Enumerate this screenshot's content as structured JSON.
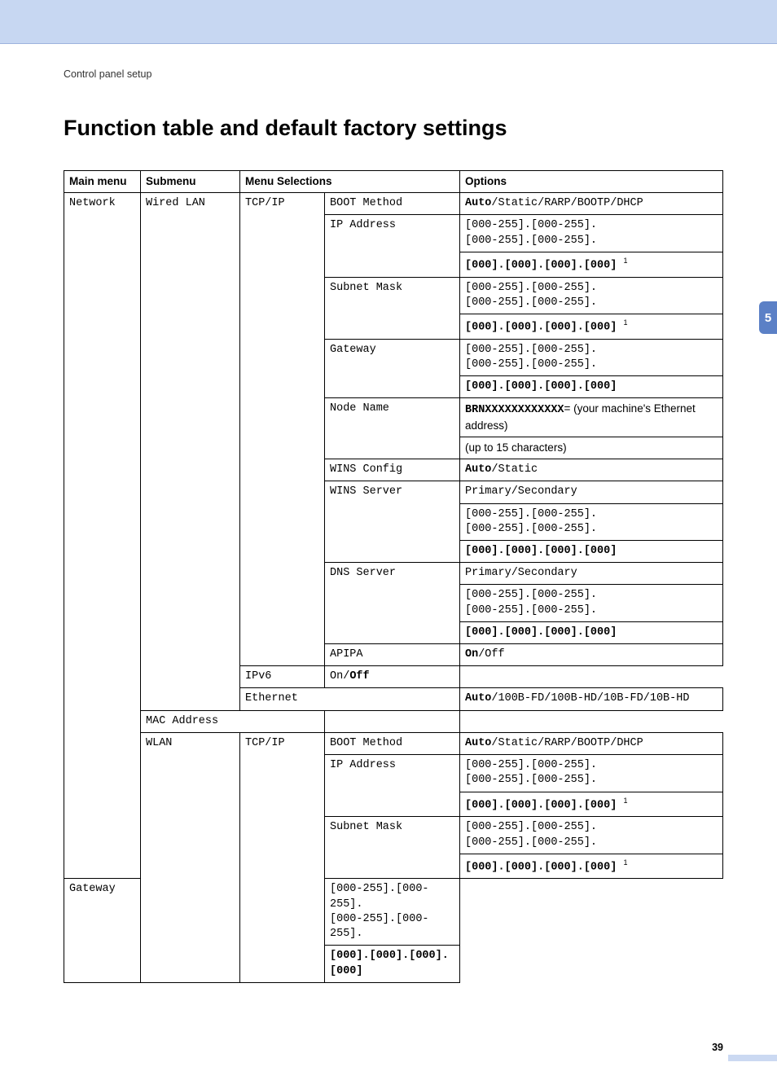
{
  "colors": {
    "header_band": "#c7d7f2",
    "side_tab": "#5b80c6",
    "border": "#000000",
    "text": "#000000"
  },
  "breadcrumb": "Control panel setup",
  "heading": "Function table and default factory settings",
  "side_tab_number": "5",
  "page_number": "39",
  "table": {
    "headers": {
      "main_menu": "Main menu",
      "submenu": "Submenu",
      "menu_selections": "Menu Selections",
      "options": "Options"
    },
    "main_menu": "Network",
    "submenus": {
      "wired": "Wired LAN",
      "wlan": "WLAN"
    },
    "selections": {
      "tcpip": "TCP/IP",
      "ethernet": "Ethernet",
      "mac": "MAC Address"
    },
    "items": {
      "boot_method": "BOOT Method",
      "ip_address": "IP Address",
      "subnet_mask": "Subnet Mask",
      "gateway": "Gateway",
      "node_name": "Node Name",
      "wins_config": "WINS Config",
      "wins_server": "WINS Server",
      "dns_server": "DNS Server",
      "apipa": "APIPA",
      "ipv6": "IPv6"
    },
    "options": {
      "boot_auto": "Auto",
      "boot_rest": "/Static/RARP/BOOTP/DHCP",
      "ip_range_a": "[000-255].[000-255].",
      "ip_range_b": "[000-255].[000-255].",
      "ip_default": "[000].[000].[000].[000]",
      "footnote_marker": "1",
      "node_prefix": "BRNXXXXXXXXXXXX",
      "node_suffix": "= (your machine's Ethernet address)",
      "node_hint": "(up to 15 characters)",
      "wins_cfg_auto": "Auto",
      "wins_cfg_rest": "/Static",
      "prim_sec": "Primary/Secondary",
      "apipa_on": "On",
      "apipa_off": "/Off",
      "ipv6_on": "On/",
      "ipv6_off": "Off",
      "eth_auto": "Auto",
      "eth_rest": "/100B-FD/100B-HD/10B-FD/10B-HD"
    }
  }
}
